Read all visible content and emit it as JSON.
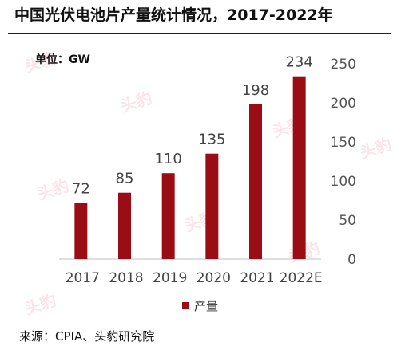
{
  "header": {
    "title": "中国光伏电池片产量统计情况，2017-2022年",
    "unit": "单位：GW"
  },
  "footer": {
    "source": "来源：CPIA、头豹研究院"
  },
  "watermark": {
    "text": "头豹"
  },
  "chart_data": {
    "type": "bar",
    "categories": [
      "2017",
      "2018",
      "2019",
      "2020",
      "2021",
      "2022E"
    ],
    "series": [
      {
        "name": "产量",
        "values": [
          72,
          85,
          110,
          135,
          198,
          234
        ],
        "color": "#9b0d14"
      }
    ],
    "data_labels": [
      "72",
      "85",
      "110",
      "135",
      "198",
      "234"
    ],
    "y_ticks": [
      0,
      50,
      100,
      150,
      200,
      250
    ],
    "ylim": [
      0,
      250
    ],
    "y_axis_position": "right",
    "grid": false,
    "legend_position": "bottom-center"
  }
}
